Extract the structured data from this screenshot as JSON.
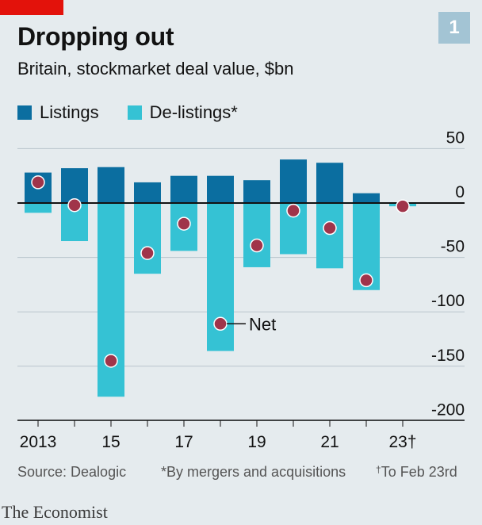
{
  "header": {
    "title": "Dropping out",
    "subtitle": "Britain, stockmarket deal value, $bn",
    "chart_number": "1"
  },
  "legend": [
    {
      "label": "Listings",
      "color": "#0b6ea0"
    },
    {
      "label": "De-listings*",
      "color": "#35c2d4"
    }
  ],
  "footer": {
    "source": "Source: Dealogic",
    "note1": "*By mergers and acquisitions",
    "note2": "To Feb 23rd",
    "dagger": "†",
    "brand": "The Economist"
  },
  "colors": {
    "listings": "#0b6ea0",
    "delistings": "#35c2d4",
    "net": "#a0344a",
    "brand_red": "#e3120b"
  },
  "chart_data": {
    "type": "bar",
    "x": [
      2013,
      2014,
      2015,
      2016,
      2017,
      2018,
      2019,
      2020,
      2021,
      2022,
      2023
    ],
    "x_tick_labels": [
      "2013",
      "",
      "15",
      "",
      "17",
      "",
      "19",
      "",
      "21",
      "",
      "23†"
    ],
    "series": [
      {
        "name": "Listings",
        "values": [
          28,
          32,
          33,
          19,
          25,
          25,
          21,
          40,
          37,
          9,
          0
        ]
      },
      {
        "name": "De-listings*",
        "values": [
          -9,
          -35,
          -178,
          -65,
          -44,
          -136,
          -59,
          -47,
          -60,
          -80,
          -3
        ]
      },
      {
        "name": "Net",
        "type": "dot",
        "values": [
          19,
          -2,
          -145,
          -46,
          -19,
          -111,
          -39,
          -7,
          -23,
          -71,
          -3
        ]
      }
    ],
    "annotations": [
      {
        "text": "Net",
        "x": 2018
      }
    ],
    "yticks": [
      "50",
      "0",
      "-50",
      "-100",
      "-150",
      "-200"
    ],
    "ylim": [
      -200,
      50
    ],
    "grid": true
  }
}
